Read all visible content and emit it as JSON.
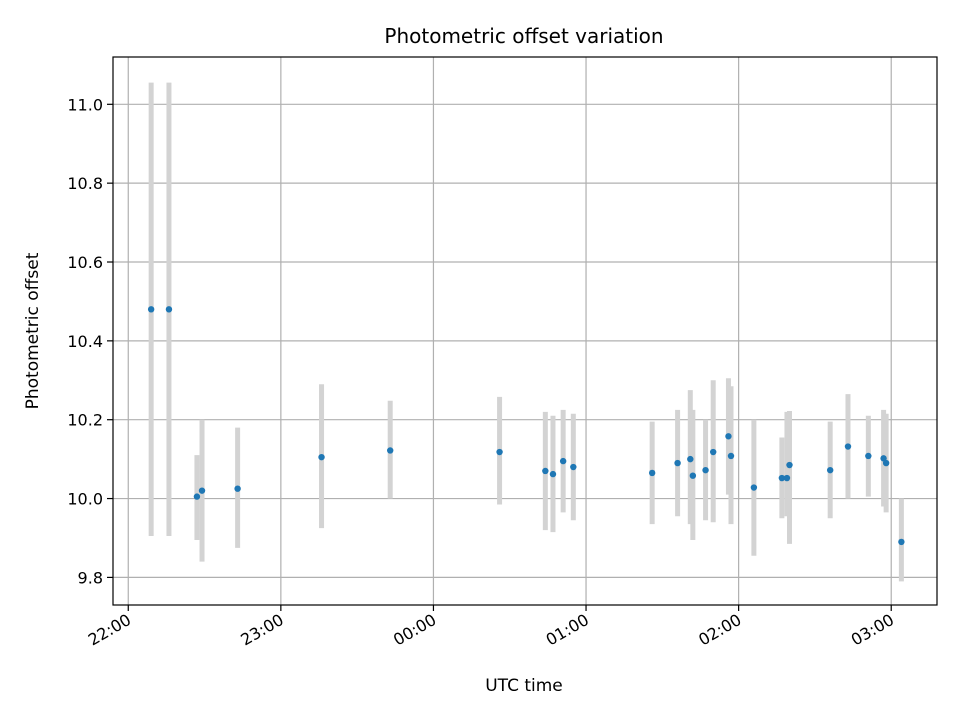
{
  "chart_data": {
    "type": "scatter",
    "title": "Photometric offset variation",
    "xlabel": "UTC time",
    "ylabel": "Photometric offset",
    "x_tick_labels": [
      "22:00",
      "23:00",
      "00:00",
      "01:00",
      "02:00",
      "03:00"
    ],
    "y_tick_labels": [
      "9.8",
      "10.0",
      "10.2",
      "10.4",
      "10.6",
      "10.8",
      "11.0"
    ],
    "grid": true,
    "xlim": [
      "21:54",
      "03:18"
    ],
    "ylim": [
      9.73,
      11.12
    ],
    "colors": {
      "point": "#1f77b4",
      "error_bar": "#d3d3d3",
      "grid": "#b0b0b0"
    },
    "series": [
      {
        "points": [
          {
            "t": "22:09",
            "y": 10.48,
            "lo": 9.905,
            "hi": 11.055
          },
          {
            "t": "22:16",
            "y": 10.48,
            "lo": 9.905,
            "hi": 11.055
          },
          {
            "t": "22:27",
            "y": 10.005,
            "lo": 9.895,
            "hi": 10.11
          },
          {
            "t": "22:29",
            "y": 10.02,
            "lo": 9.84,
            "hi": 10.2
          },
          {
            "t": "22:43",
            "y": 10.025,
            "lo": 9.875,
            "hi": 10.18
          },
          {
            "t": "23:16",
            "y": 10.105,
            "lo": 9.925,
            "hi": 10.29
          },
          {
            "t": "23:43",
            "y": 10.122,
            "lo": 10.0,
            "hi": 10.248
          },
          {
            "t": "00:26",
            "y": 10.118,
            "lo": 9.985,
            "hi": 10.258
          },
          {
            "t": "00:44",
            "y": 10.07,
            "lo": 9.92,
            "hi": 10.22
          },
          {
            "t": "00:47",
            "y": 10.062,
            "lo": 9.915,
            "hi": 10.21
          },
          {
            "t": "00:51",
            "y": 10.095,
            "lo": 9.965,
            "hi": 10.225
          },
          {
            "t": "00:55",
            "y": 10.08,
            "lo": 9.945,
            "hi": 10.215
          },
          {
            "t": "01:26",
            "y": 10.065,
            "lo": 9.935,
            "hi": 10.195
          },
          {
            "t": "01:36",
            "y": 10.09,
            "lo": 9.955,
            "hi": 10.225
          },
          {
            "t": "01:41",
            "y": 10.1,
            "lo": 9.935,
            "hi": 10.275
          },
          {
            "t": "01:42",
            "y": 10.058,
            "lo": 9.895,
            "hi": 10.225
          },
          {
            "t": "01:47",
            "y": 10.072,
            "lo": 9.945,
            "hi": 10.2
          },
          {
            "t": "01:50",
            "y": 10.118,
            "lo": 9.94,
            "hi": 10.3
          },
          {
            "t": "01:56",
            "y": 10.158,
            "lo": 10.01,
            "hi": 10.305
          },
          {
            "t": "01:57",
            "y": 10.108,
            "lo": 9.935,
            "hi": 10.285
          },
          {
            "t": "02:06",
            "y": 10.028,
            "lo": 9.855,
            "hi": 10.2
          },
          {
            "t": "02:17",
            "y": 10.052,
            "lo": 9.95,
            "hi": 10.155
          },
          {
            "t": "02:19",
            "y": 10.052,
            "lo": 9.955,
            "hi": 10.22
          },
          {
            "t": "02:20",
            "y": 10.085,
            "lo": 9.885,
            "hi": 10.222
          },
          {
            "t": "02:36",
            "y": 10.072,
            "lo": 9.95,
            "hi": 10.195
          },
          {
            "t": "02:43",
            "y": 10.132,
            "lo": 10.0,
            "hi": 10.265
          },
          {
            "t": "02:51",
            "y": 10.108,
            "lo": 10.005,
            "hi": 10.21
          },
          {
            "t": "02:57",
            "y": 10.102,
            "lo": 9.98,
            "hi": 10.225
          },
          {
            "t": "02:58",
            "y": 10.09,
            "lo": 9.965,
            "hi": 10.215
          },
          {
            "t": "03:04",
            "y": 9.89,
            "lo": 9.79,
            "hi": 10.0
          }
        ]
      }
    ]
  }
}
